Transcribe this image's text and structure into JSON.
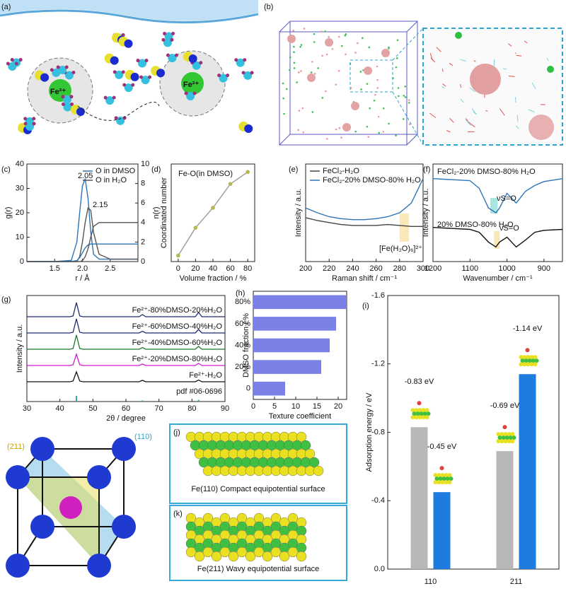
{
  "panel_labels": [
    "(a)",
    "(b)",
    "(c)",
    "(d)",
    "(e)",
    "(f)",
    "(g)",
    "(h)",
    "(i)",
    "(j)",
    "(k)"
  ],
  "illustrations": {
    "ion_left": "Fe²⁺",
    "ion_right": "Fe²⁺",
    "plane_211": "(211)",
    "plane_110": "(110)",
    "j_caption": "Fe(110) Compact equipotential surface",
    "k_caption": "Fe(211) Wavy equipotential surface"
  },
  "chart_data": [
    {
      "type": "line",
      "xlabel": "r / Å",
      "ylabel": "g(r)",
      "y2label": "n(r)",
      "legend": "upper right",
      "x": [
        1.0,
        1.5,
        1.8,
        1.9,
        1.95,
        2.0,
        2.05,
        2.1,
        2.15,
        2.2,
        2.3,
        2.5,
        3.0
      ],
      "series": [
        {
          "name": "O in DMSO",
          "color": "#2e75b6",
          "values": [
            0,
            0,
            0.5,
            8,
            20,
            31,
            34,
            26,
            12,
            3,
            1,
            1,
            1
          ]
        },
        {
          "name": "O in H₂O",
          "color": "#555555",
          "values": [
            0,
            0,
            0,
            0,
            2,
            8,
            16,
            22,
            21,
            12,
            3,
            1,
            1
          ]
        },
        {
          "color": "#2e75b6",
          "axis": "y2",
          "values": [
            0,
            0,
            0,
            0.1,
            0.4,
            0.9,
            1.4,
            1.7,
            1.8,
            1.8,
            1.8,
            1.8,
            1.8
          ]
        },
        {
          "color": "#555555",
          "axis": "y2",
          "values": [
            0,
            0,
            0,
            0,
            0,
            0.1,
            0.5,
            1.3,
            2.5,
            3.6,
            4,
            4,
            4
          ]
        }
      ],
      "annotations": [
        "2.05",
        "2.15"
      ],
      "xlim": [
        1.0,
        3.0
      ],
      "xticks": [
        1.5,
        {
          "value": 2,
          "label": "2.0"
        },
        2.5
      ],
      "ylim": [
        0,
        40
      ],
      "yticks": [
        0,
        10,
        20,
        30,
        40
      ],
      "y2lim": [
        0,
        10
      ],
      "y2ticks": [
        0,
        2,
        4,
        6,
        8,
        10
      ]
    },
    {
      "type": "line",
      "xlabel": "Volume fraction / %",
      "ylabel": "Coordinated number",
      "legend": "none",
      "x": [
        0,
        20,
        40,
        60,
        80
      ],
      "series": [
        {
          "color": "#9a9a9a",
          "marker_color": "#b5b84e",
          "values": [
            0,
            1.4,
            2.4,
            3.6,
            4.2
          ]
        }
      ],
      "annotations": [
        "Fe-O(in DMSO)"
      ],
      "xlim": [
        -8,
        88
      ],
      "xticks": [
        0,
        20,
        40,
        60,
        80
      ],
      "ylim": [
        -0.3,
        4.6
      ]
    },
    {
      "type": "line",
      "xlabel": "Raman shift / cm⁻¹",
      "ylabel": "Intensity / a.u.",
      "legend": "upper left",
      "x": [
        200,
        210,
        220,
        230,
        240,
        250,
        260,
        270,
        280,
        290,
        300
      ],
      "series": [
        {
          "name": "FeCl₂-H₂O",
          "color": "#444444",
          "values": [
            0.45,
            0.42,
            0.4,
            0.38,
            0.37,
            0.37,
            0.37,
            0.38,
            0.37,
            0.36,
            0.36
          ]
        },
        {
          "name": "FeCl₂-20% DMSO-80% H₂O",
          "color": "#2e75b6",
          "values": [
            0.55,
            0.5,
            0.46,
            0.44,
            0.43,
            0.43,
            0.44,
            0.46,
            0.5,
            0.6,
            0.85
          ]
        }
      ],
      "annotations": [
        "[Fe(H₂O)₆]²⁺"
      ],
      "xlim": [
        200,
        300
      ],
      "xticks": [
        200,
        220,
        240,
        260,
        280,
        300
      ],
      "ylim": [
        0,
        1
      ]
    },
    {
      "type": "line",
      "xlabel": "Wavenumber / cm⁻¹",
      "ylabel": "Intensity / a.u.",
      "legend": "inline",
      "x": [
        1200,
        1150,
        1100,
        1075,
        1050,
        1030,
        1020,
        1000,
        975,
        950,
        925,
        900,
        850
      ],
      "series": [
        {
          "name": "FeCl₂-20% DMSO-80% H₂O",
          "color": "#2e75b6",
          "values": [
            0.85,
            0.84,
            0.83,
            0.75,
            0.55,
            0.5,
            0.55,
            0.7,
            0.6,
            0.72,
            0.78,
            0.82,
            0.85
          ]
        },
        {
          "name": "20% DMSO-80% H₂O",
          "color": "#111111",
          "values": [
            0.35,
            0.34,
            0.33,
            0.3,
            0.2,
            0.15,
            0.2,
            0.25,
            0.15,
            0.22,
            0.3,
            0.32,
            0.33
          ]
        }
      ],
      "annotations": [
        "νS=O",
        "νS=O"
      ],
      "xlim": [
        1200,
        850
      ],
      "xticks": [
        1200,
        1100,
        1000,
        900
      ],
      "ylim": [
        0,
        1
      ]
    },
    {
      "type": "xrd",
      "xlabel": "2θ / degree",
      "ylabel": "Intensity / a.u.",
      "x": [
        30,
        43,
        44,
        45,
        46,
        47,
        64,
        65,
        66,
        81,
        82,
        83,
        90
      ],
      "series": [
        {
          "name": "Fe²⁺-80%DMSO-20%H₂O",
          "color": "#1f2a6e",
          "values": [
            0,
            0,
            0.05,
            1,
            0.05,
            0,
            0,
            0.15,
            0,
            0,
            0.3,
            0,
            0
          ]
        },
        {
          "name": "Fe²⁺-60%DMSO-40%H₂O",
          "color": "#1f2a6e",
          "values": [
            0,
            0,
            0.05,
            1,
            0.05,
            0,
            0,
            0.12,
            0,
            0,
            0.25,
            0,
            0
          ]
        },
        {
          "name": "Fe²⁺-40%DMSO-60%H₂O",
          "color": "#1a7a2a",
          "values": [
            0,
            0,
            0.05,
            1,
            0.05,
            0,
            0,
            0.12,
            0,
            0,
            0.2,
            0,
            0
          ]
        },
        {
          "name": "Fe²⁺-20%DMSO-80%H₂O",
          "color": "#d11ad1",
          "values": [
            0,
            0,
            0.05,
            0.8,
            0.05,
            0,
            0,
            0.1,
            0,
            0,
            0.15,
            0,
            0
          ]
        },
        {
          "name": "Fe²⁺-H₂O",
          "color": "#111111",
          "values": [
            0,
            0,
            0.05,
            0.7,
            0.05,
            0,
            0,
            0.1,
            0,
            0,
            0.12,
            0,
            0
          ]
        },
        {
          "name": "pdf #06-0696",
          "color": "#3aa5a0",
          "style": "stick",
          "values": [
            0,
            0,
            0,
            1,
            0,
            0,
            0,
            0.2,
            0,
            0,
            0.3,
            0,
            0
          ]
        }
      ],
      "xlim": [
        30,
        90
      ],
      "xticks": [
        30,
        40,
        50,
        60,
        70,
        80,
        90
      ]
    },
    {
      "type": "hbar",
      "xlabel": "Texture coefficient",
      "ylabel": "DMSO fraction / %",
      "color": "#7a80e6",
      "categories": [
        "80%",
        "60%",
        "40%",
        "20%",
        "0"
      ],
      "values": [
        22,
        19.5,
        18,
        16,
        7.5
      ],
      "xlim": [
        0,
        22
      ],
      "xticks": [
        0,
        5,
        10,
        15,
        20
      ]
    },
    {
      "type": "bar",
      "ylabel": "Adsorption energy / eV",
      "categories": [
        "110",
        "211"
      ],
      "series": [
        {
          "color": "#b8b8b8",
          "values": [
            -0.83,
            -0.69
          ],
          "value_labels": [
            "-0.83 eV",
            "-0.69 eV"
          ]
        },
        {
          "color": "#1e7be0",
          "values": [
            -0.45,
            -1.14
          ],
          "value_labels": [
            "-0.45 eV",
            "-1.14 eV"
          ]
        }
      ],
      "ylim": [
        0,
        -1.6
      ],
      "yticks": [
        -1.6,
        -1.2,
        -0.8,
        -0.4,
        {
          "value": 0,
          "label": "0.0"
        }
      ]
    }
  ]
}
